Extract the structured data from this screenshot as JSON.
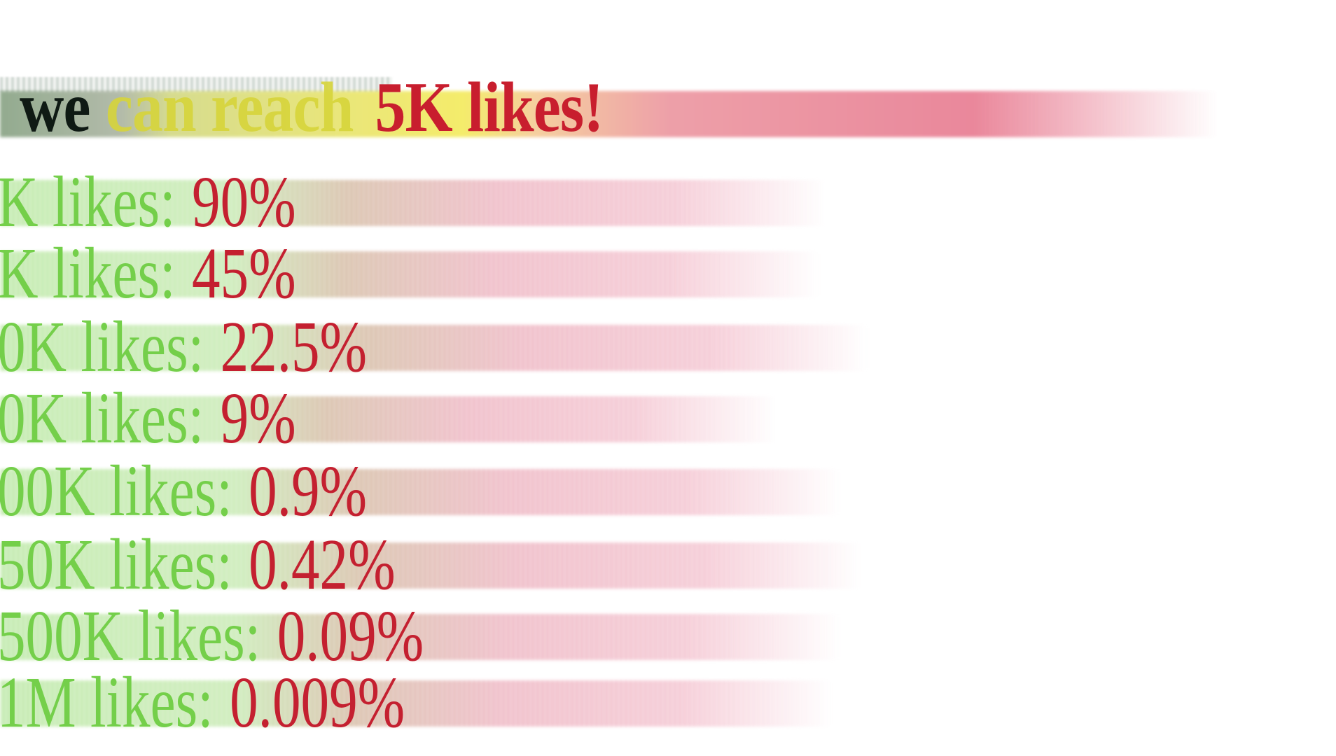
{
  "headline": {
    "part1": "we",
    "part2": "can reach",
    "part3": "5K likes!"
  },
  "colors": {
    "label_green": "#74cf4a",
    "value_red": "#c42030",
    "headline_black": "#0f1a14",
    "headline_yellow": "#d6d43a"
  },
  "rows": [
    {
      "label": "K likes:",
      "value": "90%"
    },
    {
      "label": "K likes:",
      "value": "45%"
    },
    {
      "label": "0K likes:",
      "value": "22.5%"
    },
    {
      "label": "0K likes:",
      "value": "9%"
    },
    {
      "label": "00K likes:",
      "value": "0.9%"
    },
    {
      "label": "50K likes:",
      "value": "0.42%"
    },
    {
      "label": "500K likes:",
      "value": "0.09%"
    },
    {
      "label": "1M likes:",
      "value": "0.009%"
    }
  ]
}
